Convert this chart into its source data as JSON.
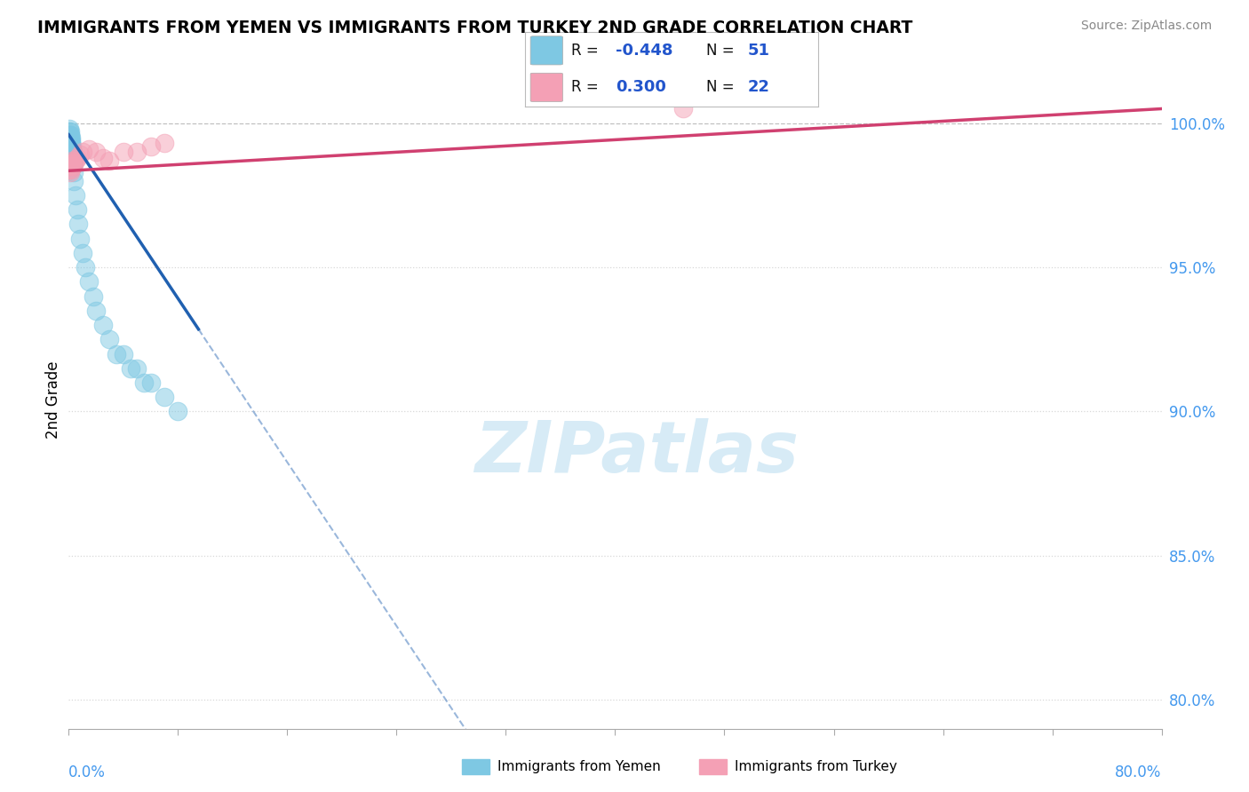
{
  "title": "IMMIGRANTS FROM YEMEN VS IMMIGRANTS FROM TURKEY 2ND GRADE CORRELATION CHART",
  "source_text": "Source: ZipAtlas.com",
  "ylabel": "2nd Grade",
  "y_ticks": [
    80.0,
    85.0,
    90.0,
    95.0,
    100.0
  ],
  "x_min": 0.0,
  "x_max": 80.0,
  "y_min": 79.0,
  "y_max": 101.8,
  "legend_r_yemen": "-0.448",
  "legend_n_yemen": "51",
  "legend_r_turkey": "0.300",
  "legend_n_turkey": "22",
  "color_yemen": "#7ec8e3",
  "color_turkey": "#f4a0b5",
  "color_trend_yemen": "#2060b0",
  "color_trend_turkey": "#d04070",
  "watermark_color": "#d0e8f5",
  "yemen_x": [
    0.05,
    0.08,
    0.1,
    0.15,
    0.18,
    0.2,
    0.22,
    0.25,
    0.28,
    0.3,
    0.05,
    0.08,
    0.1,
    0.12,
    0.15,
    0.18,
    0.2,
    0.25,
    0.3,
    0.35,
    0.05,
    0.06,
    0.08,
    0.1,
    0.12,
    0.15,
    0.18,
    0.2,
    0.25,
    0.3,
    0.35,
    0.4,
    0.5,
    0.6,
    0.7,
    0.8,
    1.0,
    1.2,
    1.5,
    1.8,
    2.0,
    2.5,
    3.0,
    3.5,
    4.0,
    4.5,
    5.0,
    5.5,
    6.0,
    7.0,
    8.0
  ],
  "yemen_y": [
    99.8,
    99.7,
    99.6,
    99.5,
    99.4,
    99.3,
    99.2,
    99.1,
    99.0,
    98.9,
    99.7,
    99.6,
    99.5,
    99.4,
    99.3,
    99.2,
    99.1,
    99.0,
    98.8,
    98.6,
    99.6,
    99.5,
    99.4,
    99.3,
    99.2,
    99.1,
    99.0,
    98.9,
    98.7,
    98.5,
    98.3,
    98.0,
    97.5,
    97.0,
    96.5,
    96.0,
    95.5,
    95.0,
    94.5,
    94.0,
    93.5,
    93.0,
    92.5,
    92.0,
    92.0,
    91.5,
    91.5,
    91.0,
    91.0,
    90.5,
    90.0
  ],
  "turkey_x": [
    0.05,
    0.08,
    0.1,
    0.12,
    0.15,
    0.2,
    0.25,
    0.3,
    0.4,
    0.5,
    0.6,
    0.8,
    1.0,
    1.5,
    2.0,
    2.5,
    3.0,
    4.0,
    5.0,
    6.0,
    7.0,
    45.0
  ],
  "turkey_y": [
    98.5,
    98.4,
    98.3,
    98.4,
    98.5,
    98.6,
    98.7,
    98.5,
    98.6,
    98.7,
    98.8,
    98.9,
    99.0,
    99.1,
    99.0,
    98.8,
    98.7,
    99.0,
    99.0,
    99.2,
    99.3,
    100.5
  ],
  "blue_line_x0": 0.0,
  "blue_line_y0": 99.6,
  "blue_line_x1": 10.0,
  "blue_line_y1": 92.5,
  "blue_solid_end": 9.5,
  "pink_line_x0": 0.0,
  "pink_line_y0": 98.35,
  "pink_line_x1": 80.0,
  "pink_line_y1": 100.5
}
